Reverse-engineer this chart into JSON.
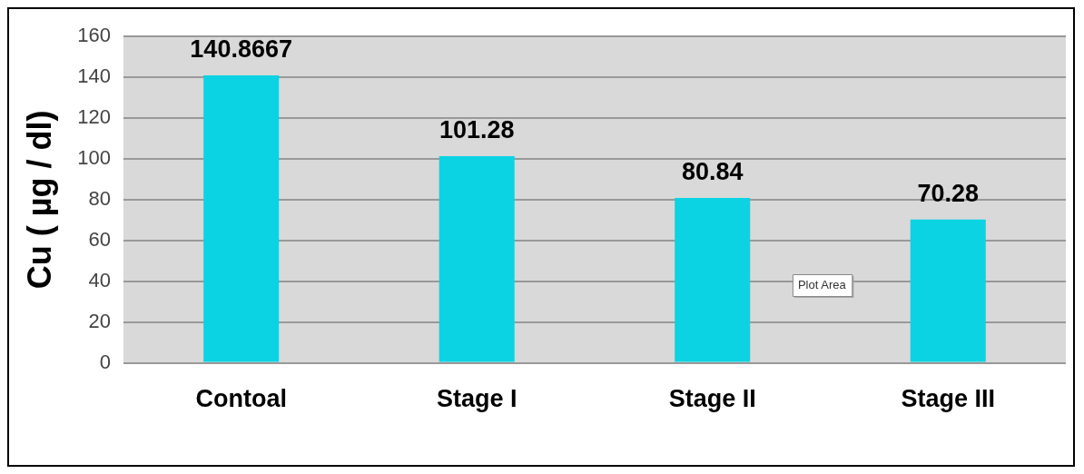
{
  "chart_data": {
    "type": "bar",
    "ylabel": "Cu ( µg / dl)",
    "categories": [
      "Contoal",
      "Stage I",
      "Stage II",
      "Stage III"
    ],
    "values": [
      140.8667,
      101.28,
      80.84,
      70.28
    ],
    "color": "#0bd3e3",
    "ylim": [
      0,
      160
    ],
    "yticks": [
      0,
      20,
      40,
      60,
      80,
      100,
      120,
      140,
      160
    ],
    "grid": "y",
    "data_labels": true,
    "annotations": [
      "Plot Area"
    ]
  }
}
